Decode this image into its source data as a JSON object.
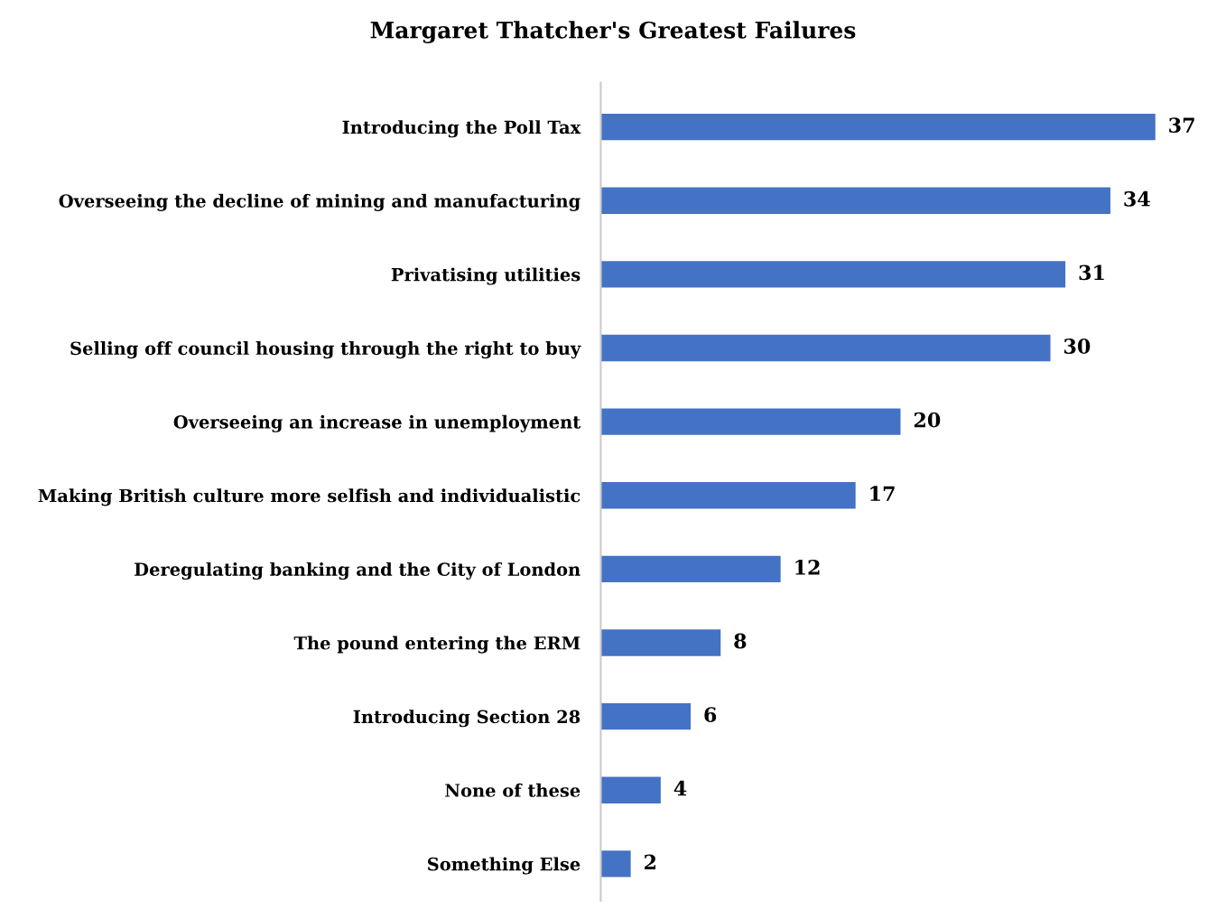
{
  "chart_data": {
    "type": "bar",
    "orientation": "horizontal",
    "title": "Margaret Thatcher's Greatest Failures",
    "categories": [
      "Introducing the Poll Tax",
      "Overseeing the decline of mining and manufacturing",
      "Privatising utilities",
      "Selling off council housing through the right to buy",
      "Overseeing an increase in unemployment",
      "Making British culture more selfish and individualistic",
      "Deregulating banking and the City of London",
      "The pound entering the ERM",
      "Introducing Section 28",
      "None of these",
      "Something Else"
    ],
    "values": [
      37,
      34,
      31,
      30,
      20,
      17,
      12,
      8,
      6,
      4,
      2
    ],
    "color": "#4472c4",
    "data_labels": true,
    "grid": false,
    "legend": false
  }
}
